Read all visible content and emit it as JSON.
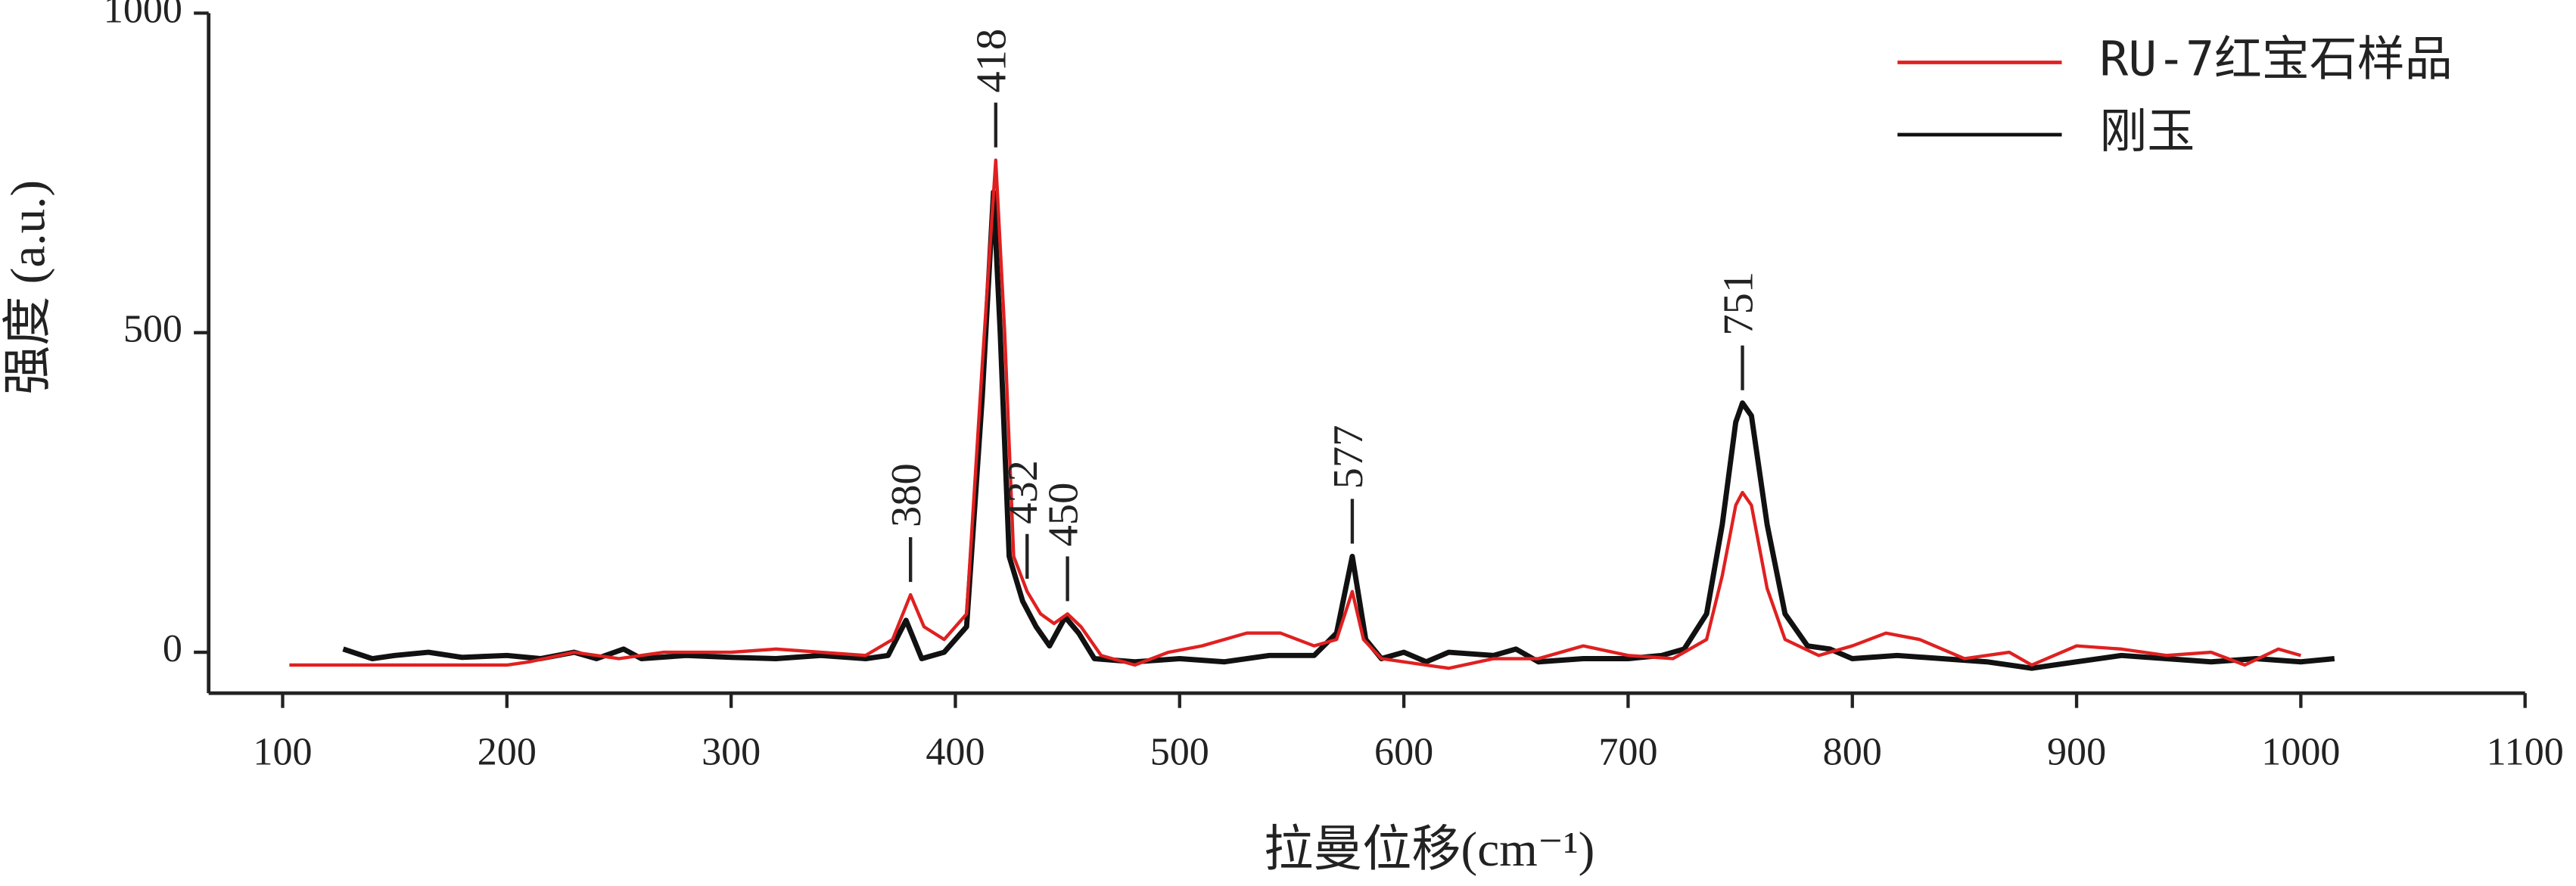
{
  "chart_data": {
    "type": "line",
    "x_label": "拉曼位移(cm⁻¹)",
    "y_label": "强度 (a.u.)",
    "xlim": [
      67,
      1100
    ],
    "ylim": [
      -64,
      1000
    ],
    "xticks": [
      100,
      200,
      300,
      400,
      500,
      600,
      700,
      800,
      900,
      1000,
      1100
    ],
    "yticks": [
      0,
      500,
      1000
    ],
    "legend": "upper right",
    "peak_labels": [
      380,
      418,
      432,
      450,
      577,
      751
    ],
    "series": [
      {
        "name": "RU-7红宝石样品",
        "color": "#e02020",
        "x": [
          103,
          200,
          210,
          230,
          250,
          270,
          300,
          320,
          340,
          360,
          372,
          380,
          386,
          395,
          405,
          412,
          418,
          422,
          426,
          432,
          438,
          444,
          450,
          456,
          465,
          480,
          495,
          510,
          530,
          545,
          560,
          570,
          577,
          582,
          590,
          620,
          640,
          660,
          680,
          700,
          720,
          735,
          742,
          748,
          751,
          755,
          762,
          770,
          785,
          800,
          815,
          830,
          850,
          870,
          880,
          900,
          920,
          940,
          960,
          975,
          990,
          1000
        ],
        "values": [
          -20,
          -20,
          -15,
          0,
          -10,
          0,
          0,
          5,
          0,
          -5,
          20,
          90,
          40,
          20,
          60,
          450,
          770,
          500,
          150,
          95,
          60,
          45,
          60,
          40,
          -5,
          -20,
          0,
          10,
          30,
          30,
          10,
          20,
          95,
          20,
          -10,
          -25,
          -10,
          -10,
          10,
          -5,
          -10,
          20,
          120,
          230,
          250,
          230,
          100,
          20,
          -5,
          10,
          30,
          20,
          -10,
          0,
          -20,
          10,
          5,
          -5,
          0,
          -20,
          5,
          -5
        ]
      },
      {
        "name": "刚玉",
        "color": "#111111",
        "x": [
          127,
          140,
          150,
          165,
          180,
          200,
          215,
          230,
          240,
          252,
          260,
          280,
          300,
          320,
          340,
          360,
          370,
          378,
          385,
          395,
          405,
          412,
          417,
          420,
          424,
          430,
          436,
          442,
          449,
          455,
          462,
          480,
          500,
          520,
          540,
          560,
          570,
          577,
          583,
          590,
          600,
          610,
          620,
          640,
          650,
          660,
          680,
          700,
          715,
          725,
          735,
          742,
          748,
          751,
          755,
          762,
          770,
          780,
          790,
          800,
          820,
          840,
          860,
          880,
          900,
          920,
          940,
          960,
          980,
          1000,
          1015
        ],
        "values": [
          5,
          -10,
          -5,
          0,
          -8,
          -5,
          -10,
          0,
          -10,
          5,
          -10,
          -5,
          -8,
          -10,
          -5,
          -10,
          -5,
          50,
          -10,
          0,
          40,
          400,
          720,
          500,
          150,
          80,
          40,
          10,
          55,
          30,
          -10,
          -15,
          -10,
          -15,
          -5,
          -5,
          30,
          150,
          20,
          -10,
          0,
          -15,
          0,
          -5,
          5,
          -15,
          -10,
          -10,
          -5,
          5,
          60,
          200,
          360,
          390,
          370,
          200,
          60,
          10,
          5,
          -10,
          -5,
          -10,
          -15,
          -25,
          -15,
          -5,
          -10,
          -15,
          -10,
          -15,
          -10
        ]
      }
    ]
  }
}
